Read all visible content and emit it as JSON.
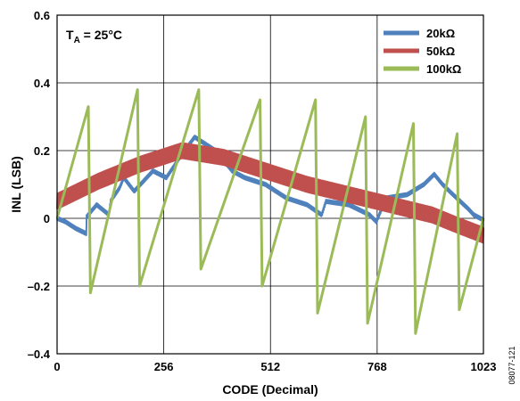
{
  "chart_data": {
    "type": "line",
    "title": "",
    "xlabel": "CODE (Decimal)",
    "ylabel": "INL (LSB)",
    "xlim": [
      0,
      1023
    ],
    "ylim": [
      -0.4,
      0.6
    ],
    "x_ticks": [
      0,
      256,
      512,
      768,
      1023
    ],
    "x_tick_labels": [
      "0",
      "256",
      "512",
      "768",
      "1023"
    ],
    "y_ticks": [
      -0.4,
      -0.2,
      0,
      0.2,
      0.4,
      0.6
    ],
    "y_tick_labels": [
      "–0.4",
      "–0.2",
      "0",
      "0.2",
      "0.4",
      "0.6"
    ],
    "grid": true,
    "legend_position": "top-right",
    "annotation": {
      "main": "T",
      "sub": "A",
      "rest": " = 25°C"
    },
    "figure_id": "08077-121",
    "series": [
      {
        "name": "20kΩ",
        "color": "#4f81bd",
        "ripple": 0.01,
        "points": [
          [
            0,
            0
          ],
          [
            20,
            -0.01
          ],
          [
            45,
            -0.03
          ],
          [
            70,
            -0.045
          ],
          [
            71,
            0.005
          ],
          [
            95,
            0.04
          ],
          [
            125,
            0.01
          ],
          [
            128,
            0.05
          ],
          [
            150,
            0.09
          ],
          [
            160,
            0.12
          ],
          [
            185,
            0.08
          ],
          [
            200,
            0.1
          ],
          [
            230,
            0.14
          ],
          [
            262,
            0.12
          ],
          [
            300,
            0.19
          ],
          [
            330,
            0.24
          ],
          [
            380,
            0.2
          ],
          [
            420,
            0.14
          ],
          [
            450,
            0.12
          ],
          [
            500,
            0.1
          ],
          [
            550,
            0.06
          ],
          [
            600,
            0.04
          ],
          [
            635,
            0.01
          ],
          [
            645,
            0.05
          ],
          [
            700,
            0.04
          ],
          [
            750,
            0.01
          ],
          [
            766,
            -0.01
          ],
          [
            790,
            0.06
          ],
          [
            840,
            0.07
          ],
          [
            880,
            0.1
          ],
          [
            905,
            0.13
          ],
          [
            925,
            0.1
          ],
          [
            950,
            0.07
          ],
          [
            985,
            0.03
          ],
          [
            1000,
            0.01
          ],
          [
            1023,
            -0.005
          ]
        ]
      },
      {
        "name": "50kΩ",
        "color": "#c0504d",
        "ripple": 0.045,
        "points": [
          [
            0,
            0.05
          ],
          [
            100,
            0.11
          ],
          [
            200,
            0.16
          ],
          [
            300,
            0.2
          ],
          [
            400,
            0.18
          ],
          [
            500,
            0.14
          ],
          [
            600,
            0.1
          ],
          [
            700,
            0.07
          ],
          [
            800,
            0.04
          ],
          [
            900,
            0.01
          ],
          [
            960,
            -0.02
          ],
          [
            1023,
            -0.05
          ]
        ]
      },
      {
        "name": "100kΩ",
        "color": "#9bbb59",
        "ripple": 0,
        "points": [
          [
            0,
            0
          ],
          [
            75,
            0.33
          ],
          [
            80,
            -0.22
          ],
          [
            193,
            0.38
          ],
          [
            198,
            -0.2
          ],
          [
            340,
            0.38
          ],
          [
            345,
            -0.15
          ],
          [
            487,
            0.35
          ],
          [
            492,
            -0.2
          ],
          [
            620,
            0.35
          ],
          [
            625,
            -0.28
          ],
          [
            740,
            0.3
          ],
          [
            745,
            -0.31
          ],
          [
            855,
            0.28
          ],
          [
            860,
            -0.34
          ],
          [
            960,
            0.25
          ],
          [
            965,
            -0.27
          ],
          [
            1023,
            0
          ]
        ]
      }
    ]
  }
}
